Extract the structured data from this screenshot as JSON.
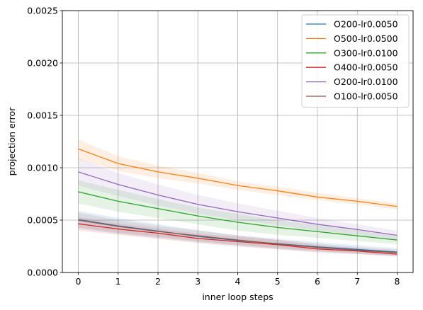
{
  "chart_data": {
    "type": "line",
    "title": "",
    "xlabel": "inner loop steps",
    "ylabel": "projection error",
    "xlim": [
      -0.4,
      8.4
    ],
    "ylim": [
      0,
      0.0025
    ],
    "xticks": [
      0,
      1,
      2,
      3,
      4,
      5,
      6,
      7,
      8
    ],
    "yticks": [
      0,
      0.0005,
      0.001,
      0.0015,
      0.002,
      0.0025
    ],
    "ytick_labels": [
      "0.0000",
      "0.0005",
      "0.0010",
      "0.0015",
      "0.0020",
      "0.0025"
    ],
    "grid": true,
    "legend_position": "top-right",
    "x": [
      0,
      1,
      2,
      3,
      4,
      5,
      6,
      7,
      8
    ],
    "series": [
      {
        "name": "O200-lr0.0050",
        "color": "#1f77b4",
        "values": [
          0.000505,
          0.000445,
          0.000395,
          0.000345,
          0.000305,
          0.000275,
          0.000245,
          0.00022,
          0.000195
        ],
        "band_lower": [
          0.00042,
          0.00037,
          0.00033,
          0.00029,
          0.000255,
          0.000225,
          0.0002,
          0.000178,
          0.000158
        ],
        "band_upper": [
          0.00059,
          0.00052,
          0.00046,
          0.000405,
          0.000355,
          0.000322,
          0.00029,
          0.00026,
          0.000232
        ]
      },
      {
        "name": "O500-lr0.0500",
        "color": "#ff7f0e",
        "values": [
          0.00118,
          0.00104,
          0.00096,
          0.0009,
          0.00083,
          0.00078,
          0.00072,
          0.00068,
          0.00063
        ],
        "band_lower": [
          0.00108,
          0.00097,
          0.0009,
          0.00085,
          0.00079,
          0.00074,
          0.00069,
          0.00065,
          0.0006
        ],
        "band_upper": [
          0.00127,
          0.00111,
          0.00102,
          0.00095,
          0.00087,
          0.00082,
          0.00076,
          0.00071,
          0.00066
        ]
      },
      {
        "name": "O300-lr0.0100",
        "color": "#2ca02c",
        "values": [
          0.00077,
          0.00068,
          0.00061,
          0.00054,
          0.00048,
          0.00043,
          0.00039,
          0.00035,
          0.00031
        ],
        "band_lower": [
          0.00066,
          0.00058,
          0.00052,
          0.00046,
          0.0004,
          0.00036,
          0.00033,
          0.0003,
          0.00027
        ],
        "band_upper": [
          0.00088,
          0.00079,
          0.0007,
          0.00062,
          0.00056,
          0.0005,
          0.00045,
          0.0004,
          0.00035
        ]
      },
      {
        "name": "O400-lr0.0050",
        "color": "#d62728",
        "values": [
          0.000465,
          0.000415,
          0.000375,
          0.000325,
          0.000295,
          0.000265,
          0.000225,
          0.000205,
          0.000175
        ],
        "band_lower": [
          0.0004,
          0.00036,
          0.00032,
          0.00028,
          0.00025,
          0.00022,
          0.00019,
          0.000175,
          0.00015
        ],
        "band_upper": [
          0.00053,
          0.00047,
          0.00042,
          0.00037,
          0.00034,
          0.00031,
          0.00026,
          0.000235,
          0.0002
        ]
      },
      {
        "name": "O200-lr0.0100",
        "color": "#9467bd",
        "values": [
          0.00096,
          0.00084,
          0.00074,
          0.00065,
          0.00058,
          0.00052,
          0.00046,
          0.00041,
          0.000355
        ],
        "band_lower": [
          0.00083,
          0.00073,
          0.00064,
          0.00056,
          0.0005,
          0.00045,
          0.0004,
          0.00036,
          0.00031
        ],
        "band_upper": [
          0.00109,
          0.00095,
          0.00084,
          0.00074,
          0.00066,
          0.00059,
          0.00052,
          0.00046,
          0.0004
        ]
      },
      {
        "name": "O100-lr0.0050",
        "color": "#8c564b",
        "values": [
          0.0005,
          0.00044,
          0.000392,
          0.00035,
          0.00031,
          0.000272,
          0.00024,
          0.000212,
          0.00019
        ],
        "band_lower": [
          0.00043,
          0.00038,
          0.00034,
          0.0003,
          0.000265,
          0.000232,
          0.000205,
          0.000182,
          0.000162
        ],
        "band_upper": [
          0.00057,
          0.0005,
          0.000444,
          0.0004,
          0.000355,
          0.000312,
          0.000275,
          0.000242,
          0.000218
        ]
      }
    ]
  }
}
